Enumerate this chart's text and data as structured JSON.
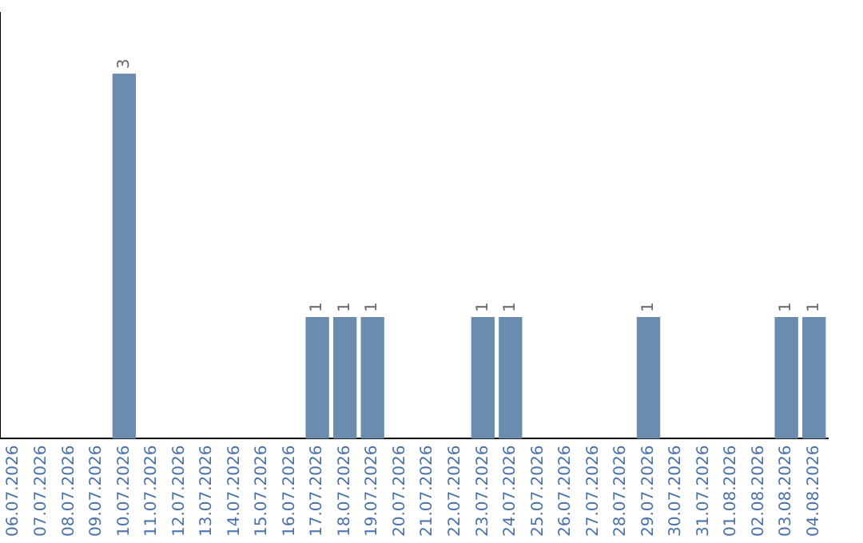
{
  "chart_data": {
    "type": "bar",
    "categories": [
      "06.07.2026",
      "07.07.2026",
      "08.07.2026",
      "09.07.2026",
      "10.07.2026",
      "11.07.2026",
      "12.07.2026",
      "13.07.2026",
      "14.07.2026",
      "15.07.2026",
      "16.07.2026",
      "17.07.2026",
      "18.07.2026",
      "19.07.2026",
      "20.07.2026",
      "21.07.2026",
      "22.07.2026",
      "23.07.2026",
      "24.07.2026",
      "25.07.2026",
      "26.07.2026",
      "27.07.2026",
      "28.07.2026",
      "29.07.2026",
      "30.07.2026",
      "31.07.2026",
      "01.08.2026",
      "02.08.2026",
      "03.08.2026",
      "04.08.2026"
    ],
    "values": [
      0,
      0,
      0,
      0,
      3,
      0,
      0,
      0,
      0,
      0,
      0,
      1,
      1,
      1,
      0,
      0,
      0,
      1,
      1,
      0,
      0,
      0,
      0,
      1,
      0,
      0,
      0,
      0,
      1,
      1
    ],
    "value_labels": [
      null,
      null,
      null,
      null,
      "3",
      null,
      null,
      null,
      null,
      null,
      null,
      "1",
      "1",
      "1",
      null,
      null,
      null,
      "1",
      "1",
      null,
      null,
      null,
      null,
      "1",
      null,
      null,
      null,
      null,
      "1",
      "1"
    ],
    "color": "#6b8cae",
    "grid": false,
    "legend": false
  }
}
